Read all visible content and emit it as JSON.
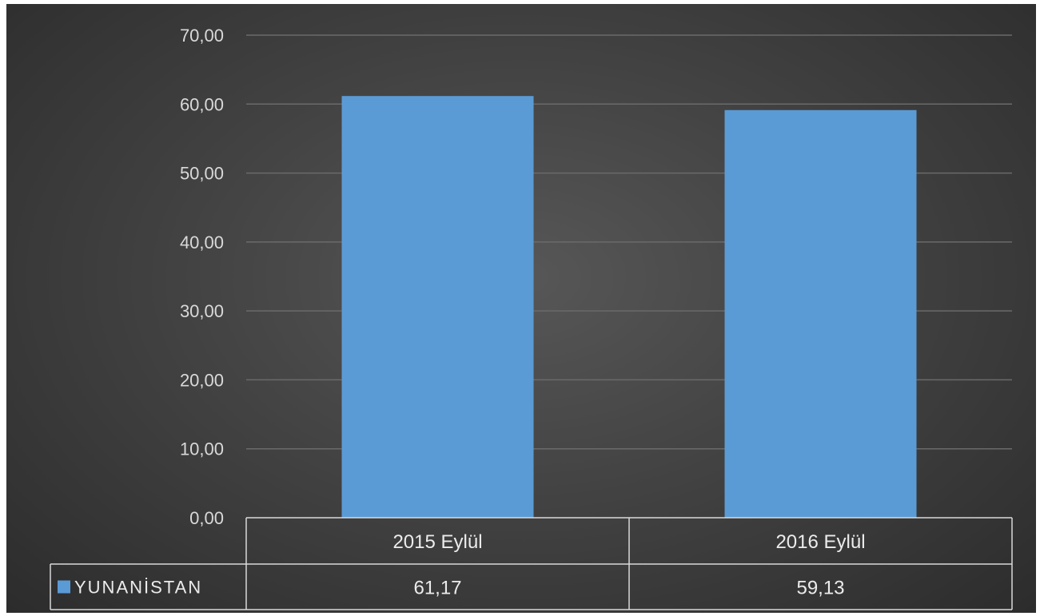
{
  "chart_data": {
    "type": "bar",
    "categories": [
      "2015 Eylül",
      "2016 Eylül"
    ],
    "series": [
      {
        "name": "YUNANİSTAN",
        "values": [
          61.17,
          59.13
        ],
        "labels": [
          "61,17",
          "59,13"
        ],
        "color": "#5b9bd5"
      }
    ],
    "y_ticks": [
      "0,00",
      "10,00",
      "20,00",
      "30,00",
      "40,00",
      "50,00",
      "60,00",
      "70,00"
    ],
    "ylim": [
      0,
      70
    ],
    "grid": true,
    "legend": "data-table"
  }
}
